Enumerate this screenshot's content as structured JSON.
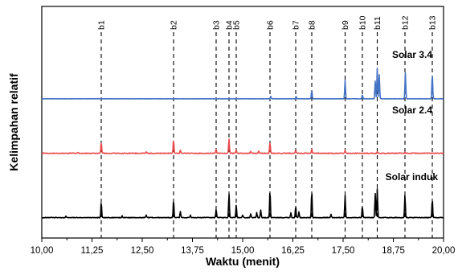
{
  "chart_data": {
    "type": "line",
    "xlabel": "Waktu (menit)",
    "ylabel": "Kelimpahan relatif",
    "xlim": [
      10.0,
      20.0
    ],
    "x_ticks": [
      10.0,
      11.25,
      12.5,
      13.75,
      15.0,
      16.25,
      17.5,
      18.75,
      20.0
    ],
    "x_tick_labels": [
      "10,00",
      "11,25",
      "12,50",
      "13,75",
      "15,00",
      "16,25",
      "17,50",
      "18,75",
      "20,00"
    ],
    "y_ticks_shown": false,
    "peak_markers": [
      {
        "label": "b1",
        "x": 11.48
      },
      {
        "label": "b2",
        "x": 13.28
      },
      {
        "label": "b3",
        "x": 14.34
      },
      {
        "label": "b4",
        "x": 14.66
      },
      {
        "label": "b5",
        "x": 14.84
      },
      {
        "label": "b6",
        "x": 15.68
      },
      {
        "label": "b7",
        "x": 16.32
      },
      {
        "label": "b8",
        "x": 16.72
      },
      {
        "label": "b9",
        "x": 17.55
      },
      {
        "label": "b10",
        "x": 17.98
      },
      {
        "label": "b11",
        "x": 18.35
      },
      {
        "label": "b12",
        "x": 19.04
      },
      {
        "label": "b13",
        "x": 19.72
      }
    ],
    "series": [
      {
        "name": "Solar 3.4",
        "color": "#4472c4",
        "baseline": 0,
        "peaks": [
          {
            "x": 15.7,
            "h": 3
          },
          {
            "x": 16.33,
            "h": 3
          },
          {
            "x": 16.72,
            "h": 11
          },
          {
            "x": 17.55,
            "h": 23
          },
          {
            "x": 17.98,
            "h": 5
          },
          {
            "x": 18.3,
            "h": 22
          },
          {
            "x": 18.35,
            "h": 38
          },
          {
            "x": 18.4,
            "h": 30
          },
          {
            "x": 19.05,
            "h": 32
          },
          {
            "x": 19.72,
            "h": 31
          }
        ]
      },
      {
        "name": "Solar 2.4",
        "color": "#e84a4a",
        "baseline": 0,
        "peaks": [
          {
            "x": 10.9,
            "h": 1
          },
          {
            "x": 11.48,
            "h": 14
          },
          {
            "x": 12.6,
            "h": 2
          },
          {
            "x": 13.28,
            "h": 17
          },
          {
            "x": 13.45,
            "h": 4
          },
          {
            "x": 14.34,
            "h": 5
          },
          {
            "x": 14.66,
            "h": 18
          },
          {
            "x": 14.84,
            "h": 4
          },
          {
            "x": 15.2,
            "h": 2
          },
          {
            "x": 15.4,
            "h": 3
          },
          {
            "x": 15.68,
            "h": 14
          },
          {
            "x": 16.32,
            "h": 4
          },
          {
            "x": 16.72,
            "h": 5
          },
          {
            "x": 17.55,
            "h": 4
          },
          {
            "x": 18.35,
            "h": 2
          },
          {
            "x": 19.04,
            "h": 1
          }
        ]
      },
      {
        "name": "Solar induk",
        "color": "#000000",
        "baseline": 0,
        "peaks": [
          {
            "x": 10.6,
            "h": 2
          },
          {
            "x": 11.48,
            "h": 20
          },
          {
            "x": 12.0,
            "h": 2
          },
          {
            "x": 12.6,
            "h": 3
          },
          {
            "x": 13.28,
            "h": 22
          },
          {
            "x": 13.45,
            "h": 8
          },
          {
            "x": 13.7,
            "h": 3
          },
          {
            "x": 14.34,
            "h": 10
          },
          {
            "x": 14.66,
            "h": 30
          },
          {
            "x": 14.84,
            "h": 16
          },
          {
            "x": 15.0,
            "h": 3
          },
          {
            "x": 15.2,
            "h": 5
          },
          {
            "x": 15.35,
            "h": 6
          },
          {
            "x": 15.45,
            "h": 9
          },
          {
            "x": 15.68,
            "h": 34
          },
          {
            "x": 16.2,
            "h": 6
          },
          {
            "x": 16.32,
            "h": 14
          },
          {
            "x": 16.4,
            "h": 7
          },
          {
            "x": 16.72,
            "h": 33
          },
          {
            "x": 17.2,
            "h": 4
          },
          {
            "x": 17.55,
            "h": 28
          },
          {
            "x": 17.98,
            "h": 14
          },
          {
            "x": 18.3,
            "h": 30
          },
          {
            "x": 18.35,
            "h": 36
          },
          {
            "x": 19.04,
            "h": 28
          },
          {
            "x": 19.72,
            "h": 23
          }
        ]
      }
    ]
  }
}
